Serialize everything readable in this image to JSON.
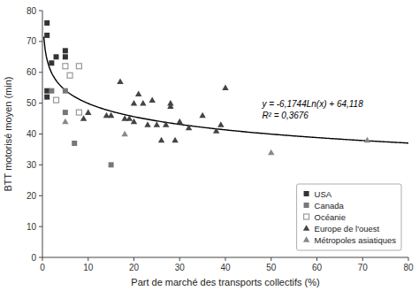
{
  "chart_data": {
    "type": "scatter",
    "title": "",
    "xlabel": "Part de marché des transports collectifs (%)",
    "ylabel": "BTT motorisé moyen (min)",
    "xlim": [
      0,
      80
    ],
    "ylim": [
      0,
      80
    ],
    "xticks": [
      0,
      10,
      20,
      30,
      40,
      50,
      60,
      70,
      80
    ],
    "yticks": [
      0,
      10,
      20,
      30,
      40,
      50,
      60,
      70,
      80
    ],
    "grid": false,
    "legend": "lower right",
    "annotations": [
      "y = -6,1744Ln(x) + 64,118",
      "R² = 0,3676"
    ],
    "fit": {
      "a": -6.1744,
      "b": 64.118,
      "x_range": [
        0.3,
        80
      ],
      "color": "#000000"
    },
    "background_color": "#ffffff",
    "series": [
      {
        "name": "USA",
        "color": "#333333",
        "marker": "square",
        "x": [
          1,
          1,
          1,
          1,
          2,
          3,
          5,
          5
        ],
        "values": [
          72,
          76,
          54,
          52,
          63,
          65,
          67,
          65
        ]
      },
      {
        "name": "Canada",
        "color": "#777777",
        "marker": "square",
        "x": [
          2,
          5,
          5,
          7,
          15
        ],
        "values": [
          54,
          54,
          47,
          37,
          30
        ]
      },
      {
        "name": "Océanie",
        "color": "#999999",
        "marker": "open-square",
        "x": [
          3,
          5,
          6,
          8,
          8
        ],
        "values": [
          51,
          62,
          59,
          62,
          47
        ]
      },
      {
        "name": "Europe de l'ouest",
        "color": "#444444",
        "marker": "triangle",
        "x": [
          9,
          10,
          14,
          15,
          17,
          18,
          19,
          20,
          20,
          21,
          22,
          23,
          24,
          25,
          26,
          27,
          28,
          28,
          29,
          30,
          32,
          35,
          38,
          39,
          40
        ],
        "values": [
          45,
          47,
          46,
          46,
          57,
          45,
          45,
          50,
          44,
          53,
          50,
          43,
          51,
          43,
          38,
          43,
          50,
          49,
          38,
          44,
          42,
          46,
          41,
          43,
          55
        ]
      },
      {
        "name": "Métropoles asiatiques",
        "color": "#888888",
        "marker": "triangle",
        "x": [
          5,
          18,
          50,
          71
        ],
        "values": [
          44,
          40,
          34,
          38
        ]
      }
    ]
  }
}
